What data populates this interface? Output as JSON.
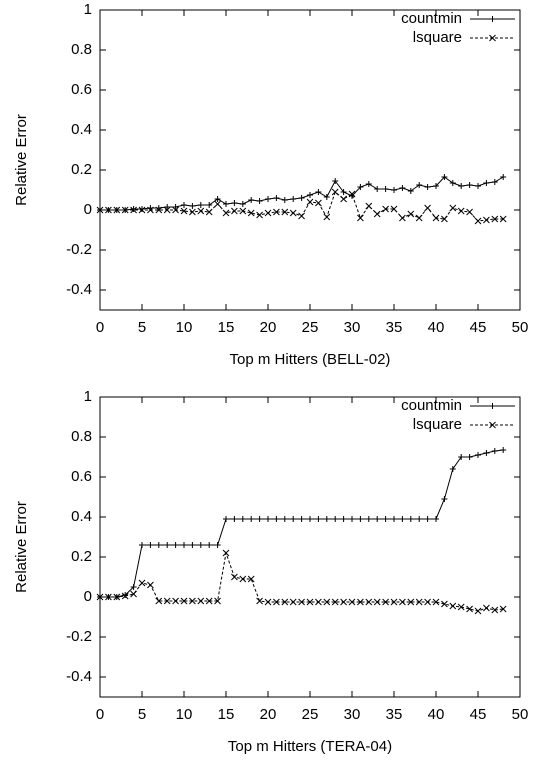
{
  "chart_data": [
    {
      "type": "line",
      "xlabel": "Top m Hitters (BELL-02)",
      "ylabel": "Relative Error",
      "x": [
        0,
        1,
        2,
        3,
        4,
        5,
        6,
        7,
        8,
        9,
        10,
        11,
        12,
        13,
        14,
        15,
        16,
        17,
        18,
        19,
        20,
        21,
        22,
        23,
        24,
        25,
        26,
        27,
        28,
        29,
        30,
        31,
        32,
        33,
        34,
        35,
        36,
        37,
        38,
        39,
        40,
        41,
        42,
        43,
        44,
        45,
        46,
        47,
        48
      ],
      "series": [
        {
          "name": "countmin",
          "color": "#000000",
          "dash": false,
          "marker": "plus",
          "values": [
            0,
            0,
            0,
            0,
            0.005,
            0.005,
            0.01,
            0.01,
            0.015,
            0.015,
            0.025,
            0.02,
            0.025,
            0.025,
            0.055,
            0.03,
            0.035,
            0.03,
            0.05,
            0.045,
            0.055,
            0.06,
            0.05,
            0.055,
            0.06,
            0.075,
            0.09,
            0.065,
            0.145,
            0.09,
            0.07,
            0.115,
            0.13,
            0.105,
            0.105,
            0.1,
            0.11,
            0.095,
            0.125,
            0.115,
            0.12,
            0.165,
            0.135,
            0.12,
            0.125,
            0.12,
            0.135,
            0.14,
            0.165
          ]
        },
        {
          "name": "lsquare",
          "color": "#000000",
          "dash": true,
          "marker": "cross",
          "values": [
            0,
            0,
            0,
            0,
            0,
            0,
            0,
            0,
            0,
            0,
            -0.005,
            -0.01,
            -0.005,
            -0.01,
            0.03,
            -0.015,
            -0.005,
            -0.005,
            -0.015,
            -0.025,
            -0.015,
            -0.01,
            -0.01,
            -0.015,
            -0.03,
            0.04,
            0.035,
            -0.035,
            0.09,
            0.055,
            0.08,
            -0.04,
            0.02,
            -0.02,
            0.005,
            0.005,
            -0.04,
            -0.02,
            -0.04,
            0.01,
            -0.04,
            -0.045,
            0.01,
            -0.005,
            -0.01,
            -0.055,
            -0.05,
            -0.045,
            -0.045
          ]
        }
      ],
      "xlim": [
        0,
        50
      ],
      "xticks": [
        0,
        5,
        10,
        15,
        20,
        25,
        30,
        35,
        40,
        45,
        50
      ],
      "ylim": [
        -0.5,
        1
      ],
      "yticks": [
        -0.4,
        -0.2,
        0,
        0.2,
        0.4,
        0.6,
        0.8,
        1
      ],
      "legend": "upper right"
    },
    {
      "type": "line",
      "xlabel": "Top m Hitters (TERA-04)",
      "ylabel": "Relative Error",
      "x": [
        0,
        1,
        2,
        3,
        4,
        5,
        6,
        7,
        8,
        9,
        10,
        11,
        12,
        13,
        14,
        15,
        16,
        17,
        18,
        19,
        20,
        21,
        22,
        23,
        24,
        25,
        26,
        27,
        28,
        29,
        30,
        31,
        32,
        33,
        34,
        35,
        36,
        37,
        38,
        39,
        40,
        41,
        42,
        43,
        44,
        45,
        46,
        47,
        48
      ],
      "series": [
        {
          "name": "countmin",
          "color": "#000000",
          "dash": false,
          "marker": "plus",
          "values": [
            0,
            0,
            0,
            0.01,
            0.05,
            0.26,
            0.26,
            0.26,
            0.26,
            0.26,
            0.26,
            0.26,
            0.26,
            0.26,
            0.26,
            0.39,
            0.39,
            0.39,
            0.39,
            0.39,
            0.39,
            0.39,
            0.39,
            0.39,
            0.39,
            0.39,
            0.39,
            0.39,
            0.39,
            0.39,
            0.39,
            0.39,
            0.39,
            0.39,
            0.39,
            0.39,
            0.39,
            0.39,
            0.39,
            0.39,
            0.39,
            0.49,
            0.64,
            0.7,
            0.7,
            0.71,
            0.72,
            0.73,
            0.735
          ]
        },
        {
          "name": "lsquare",
          "color": "#000000",
          "dash": true,
          "marker": "cross",
          "values": [
            0,
            0,
            0,
            0.005,
            0.015,
            0.07,
            0.06,
            -0.02,
            -0.02,
            -0.02,
            -0.02,
            -0.02,
            -0.02,
            -0.02,
            -0.02,
            0.22,
            0.1,
            0.09,
            0.09,
            -0.02,
            -0.025,
            -0.025,
            -0.025,
            -0.025,
            -0.025,
            -0.025,
            -0.025,
            -0.025,
            -0.025,
            -0.025,
            -0.025,
            -0.025,
            -0.025,
            -0.025,
            -0.025,
            -0.025,
            -0.025,
            -0.025,
            -0.025,
            -0.025,
            -0.025,
            -0.035,
            -0.045,
            -0.05,
            -0.06,
            -0.07,
            -0.055,
            -0.065,
            -0.06
          ]
        }
      ],
      "xlim": [
        0,
        50
      ],
      "xticks": [
        0,
        5,
        10,
        15,
        20,
        25,
        30,
        35,
        40,
        45,
        50
      ],
      "ylim": [
        -0.5,
        1
      ],
      "yticks": [
        -0.4,
        -0.2,
        0,
        0.2,
        0.4,
        0.6,
        0.8,
        1
      ],
      "legend": "upper right"
    }
  ]
}
